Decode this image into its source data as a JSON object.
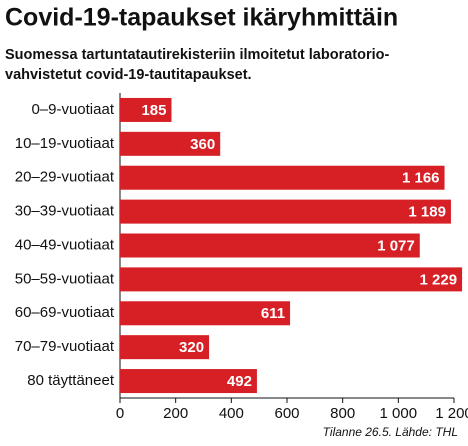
{
  "chart_data": {
    "type": "bar",
    "orientation": "horizontal",
    "title": "Covid-19-tapaukset ikäryhmittäin",
    "subtitle": [
      "Suomessa tartuntatautirekisteriin ilmoitetut laboratorio-",
      "vahvistetut covid-19-tautitapaukset."
    ],
    "categories": [
      "0–9-vuotiaat",
      "10–19-vuotiaat",
      "20–29-vuotiaat",
      "30–39-vuotiaat",
      "40–49-vuotiaat",
      "50–59-vuotiaat",
      "60–69-vuotiaat",
      "70–79-vuotiaat",
      "80 täyttäneet"
    ],
    "values": [
      185,
      360,
      1166,
      1189,
      1077,
      1229,
      611,
      320,
      492
    ],
    "value_labels": [
      "185",
      "360",
      "1 166",
      "1 189",
      "1 077",
      "1 229",
      "611",
      "320",
      "492"
    ],
    "color": "#d71f26",
    "xlim": [
      0,
      1200
    ],
    "xticks": [
      0,
      200,
      400,
      600,
      800,
      {
        "value": 1000,
        "label": "1 000"
      },
      {
        "value": 1200,
        "label": "1 200"
      }
    ],
    "source": "Tilanne 26.5. Lähde: THL"
  }
}
